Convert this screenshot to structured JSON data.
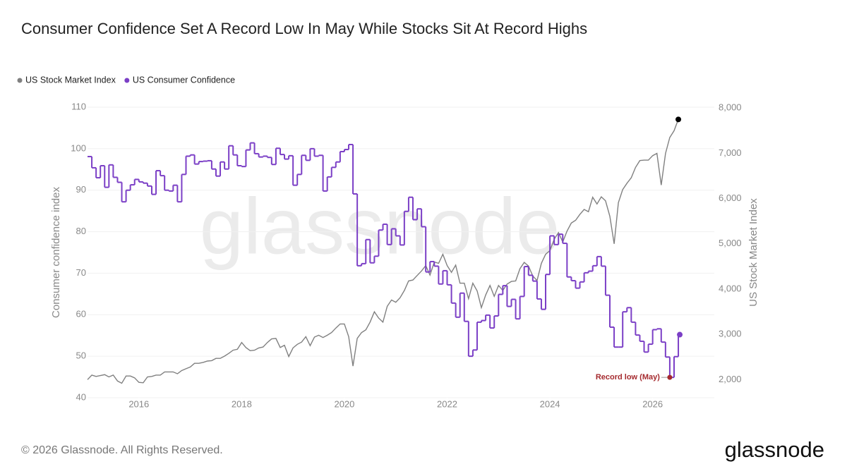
{
  "chart_data": {
    "type": "line",
    "title": "Consumer Confidence Set A Record Low In May While Stocks Sit At Record Highs",
    "watermark": "glassnode",
    "footer": "© 2026 Glassnode. All Rights Reserved.",
    "logo": "glassnode",
    "y_label": "Consumer confidence index",
    "y2_label": "US Stock Market Index",
    "legend": "top-left",
    "grid": true,
    "xlim": [
      2015,
      2027.2
    ],
    "xticks": [
      2016,
      2018,
      2020,
      2022,
      2024,
      2026
    ],
    "ylim": [
      40,
      110
    ],
    "yticks": [
      40,
      50,
      60,
      70,
      80,
      90,
      100,
      110
    ],
    "y2lim": [
      1600,
      8020
    ],
    "y2ticks": [
      {
        "value": 2000,
        "label": "2,000"
      },
      {
        "value": 3000,
        "label": "3,000"
      },
      {
        "value": 4000,
        "label": "4,000"
      },
      {
        "value": 5000,
        "label": "5,000"
      },
      {
        "value": 6000,
        "label": "6,000"
      },
      {
        "value": 7000,
        "label": "7,000"
      },
      {
        "value": 8000,
        "label": "8,000"
      }
    ],
    "x": [
      "2015-01",
      "2015-02",
      "2015-03",
      "2015-04",
      "2015-05",
      "2015-06",
      "2015-07",
      "2015-08",
      "2015-09",
      "2015-10",
      "2015-11",
      "2015-12",
      "2016-01",
      "2016-02",
      "2016-03",
      "2016-04",
      "2016-05",
      "2016-06",
      "2016-07",
      "2016-08",
      "2016-09",
      "2016-10",
      "2016-11",
      "2016-12",
      "2017-01",
      "2017-02",
      "2017-03",
      "2017-04",
      "2017-05",
      "2017-06",
      "2017-07",
      "2017-08",
      "2017-09",
      "2017-10",
      "2017-11",
      "2017-12",
      "2018-01",
      "2018-02",
      "2018-03",
      "2018-04",
      "2018-05",
      "2018-06",
      "2018-07",
      "2018-08",
      "2018-09",
      "2018-10",
      "2018-11",
      "2018-12",
      "2019-01",
      "2019-02",
      "2019-03",
      "2019-04",
      "2019-05",
      "2019-06",
      "2019-07",
      "2019-08",
      "2019-09",
      "2019-10",
      "2019-11",
      "2019-12",
      "2020-01",
      "2020-02",
      "2020-03",
      "2020-04",
      "2020-05",
      "2020-06",
      "2020-07",
      "2020-08",
      "2020-09",
      "2020-10",
      "2020-11",
      "2020-12",
      "2021-01",
      "2021-02",
      "2021-03",
      "2021-04",
      "2021-05",
      "2021-06",
      "2021-07",
      "2021-08",
      "2021-09",
      "2021-10",
      "2021-11",
      "2021-12",
      "2022-01",
      "2022-02",
      "2022-03",
      "2022-04",
      "2022-05",
      "2022-06",
      "2022-07",
      "2022-08",
      "2022-09",
      "2022-10",
      "2022-11",
      "2022-12",
      "2023-01",
      "2023-02",
      "2023-03",
      "2023-04",
      "2023-05",
      "2023-06",
      "2023-07",
      "2023-08",
      "2023-09",
      "2023-10",
      "2023-11",
      "2023-12",
      "2024-01",
      "2024-02",
      "2024-03",
      "2024-04",
      "2024-05",
      "2024-06",
      "2024-07",
      "2024-08",
      "2024-09",
      "2024-10",
      "2024-11",
      "2024-12",
      "2025-01",
      "2025-02",
      "2025-03",
      "2025-04",
      "2025-05",
      "2025-06",
      "2025-07",
      "2025-08",
      "2025-09",
      "2025-10",
      "2025-11",
      "2025-12",
      "2026-01",
      "2026-02",
      "2026-03",
      "2026-04",
      "2026-05",
      "2026-06",
      "2026-07"
    ],
    "series": [
      {
        "name": "US Stock Market Index",
        "color": "#808080",
        "axis": "y2",
        "values": [
          2000,
          2100,
          2070,
          2090,
          2110,
          2060,
          2100,
          1970,
          1920,
          2080,
          2080,
          2040,
          1940,
          1930,
          2060,
          2070,
          2100,
          2100,
          2170,
          2170,
          2170,
          2130,
          2200,
          2240,
          2280,
          2360,
          2360,
          2380,
          2410,
          2420,
          2470,
          2470,
          2520,
          2580,
          2650,
          2670,
          2820,
          2710,
          2640,
          2650,
          2700,
          2720,
          2820,
          2900,
          2910,
          2710,
          2760,
          2510,
          2700,
          2780,
          2830,
          2950,
          2750,
          2940,
          2980,
          2930,
          2980,
          3040,
          3140,
          3230,
          3230,
          2950,
          2300,
          2910,
          3040,
          3100,
          3270,
          3500,
          3360,
          3270,
          3620,
          3760,
          3710,
          3810,
          3970,
          4180,
          4200,
          4300,
          4400,
          4520,
          4310,
          4600,
          4570,
          4770,
          4520,
          4370,
          4530,
          4130,
          4130,
          3790,
          4130,
          3960,
          3590,
          3870,
          4080,
          3840,
          4080,
          3970,
          4110,
          4170,
          4180,
          4450,
          4590,
          4510,
          4290,
          4190,
          4570,
          4770,
          4850,
          5100,
          5250,
          5040,
          5280,
          5460,
          5520,
          5650,
          5760,
          5710,
          6030,
          5880,
          6040,
          5950,
          5610,
          5000,
          5910,
          6200,
          6340,
          6460,
          6690,
          6840,
          6850,
          6850,
          6950,
          7000,
          6300,
          7000,
          7350,
          7500,
          7750
        ]
      },
      {
        "name": "US Consumer Confidence",
        "color": "#7b3fc6",
        "step": true,
        "values": [
          98.1,
          95.4,
          93.0,
          95.9,
          90.7,
          96.1,
          93.1,
          91.9,
          87.2,
          90.0,
          91.3,
          92.6,
          92.0,
          91.7,
          91.0,
          89.0,
          94.7,
          93.5,
          90.0,
          89.8,
          91.2,
          87.2,
          93.8,
          98.2,
          98.5,
          96.3,
          96.9,
          97.0,
          97.1,
          95.1,
          93.4,
          96.8,
          95.1,
          100.7,
          98.5,
          95.9,
          95.7,
          99.7,
          101.4,
          98.8,
          98.0,
          98.2,
          97.9,
          96.2,
          100.1,
          98.6,
          97.5,
          98.3,
          91.2,
          93.8,
          98.4,
          97.2,
          100.0,
          98.2,
          98.4,
          89.8,
          93.2,
          95.5,
          96.8,
          99.3,
          99.8,
          101.0,
          89.1,
          71.8,
          72.3,
          78.1,
          72.5,
          74.1,
          80.4,
          81.8,
          76.9,
          80.7,
          79.0,
          76.8,
          84.9,
          88.3,
          82.9,
          85.5,
          81.2,
          70.3,
          72.8,
          71.7,
          67.4,
          70.6,
          67.2,
          62.8,
          59.4,
          65.2,
          58.4,
          50.0,
          51.5,
          58.2,
          58.6,
          59.9,
          56.8,
          59.7,
          64.9,
          67.0,
          62.0,
          63.7,
          59.0,
          64.4,
          71.6,
          69.5,
          68.1,
          63.8,
          61.3,
          69.7,
          79.0,
          76.9,
          79.4,
          77.2,
          69.1,
          68.2,
          66.4,
          67.9,
          70.1,
          70.5,
          71.8,
          74.0,
          71.7,
          64.7,
          57.0,
          52.2,
          52.2,
          60.7,
          61.7,
          58.2,
          55.1,
          53.6,
          51.0,
          52.9,
          56.4,
          56.6,
          53.4,
          49.8,
          44.9,
          49.9,
          55.2
        ]
      }
    ],
    "annotation": {
      "text": "Record low (May)",
      "series": 1,
      "index": 136,
      "color": "#a52a2e"
    }
  }
}
